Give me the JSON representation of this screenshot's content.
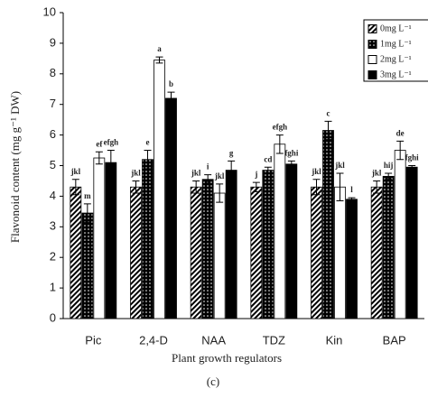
{
  "chart_data": {
    "type": "bar",
    "ylabel": "Flavonoid content (mg g⁻¹ DW)",
    "xlabel": "Plant growth regulators",
    "caption": "(c)",
    "categories": [
      "Pic",
      "2,4-D",
      "NAA",
      "TDZ",
      "Kin",
      "BAP"
    ],
    "ylim": [
      0,
      10
    ],
    "yticks": [
      0,
      1,
      2,
      3,
      4,
      5,
      6,
      7,
      8,
      9,
      10
    ],
    "series": [
      {
        "name": "0mg L⁻¹",
        "color": "#000000",
        "pattern": "hatch",
        "values": [
          4.3,
          4.3,
          4.3,
          4.3,
          4.3,
          4.3
        ],
        "errors": [
          0.25,
          0.2,
          0.2,
          0.15,
          0.25,
          0.2
        ],
        "letters": [
          "jkl",
          "jkl",
          "jkl",
          "j",
          "jkl",
          "jkl"
        ]
      },
      {
        "name": "1mg L⁻¹",
        "color": "#000000",
        "pattern": "dots",
        "values": [
          3.45,
          5.2,
          4.55,
          4.85,
          6.15,
          4.65
        ],
        "errors": [
          0.3,
          0.3,
          0.15,
          0.1,
          0.3,
          0.1
        ],
        "letters": [
          "m",
          "e",
          "i",
          "cd",
          "c",
          "hij"
        ]
      },
      {
        "name": "2mg L⁻¹",
        "color": "#ffffff",
        "pattern": "none",
        "values": [
          5.25,
          8.45,
          4.1,
          5.7,
          4.3,
          5.5
        ],
        "errors": [
          0.2,
          0.1,
          0.3,
          0.3,
          0.45,
          0.3
        ],
        "letters": [
          "ef",
          "a",
          "jkl",
          "efgh",
          "jkl",
          "de"
        ]
      },
      {
        "name": "3mg L⁻¹",
        "color": "#000000",
        "pattern": "none",
        "values": [
          5.1,
          7.2,
          4.85,
          5.05,
          3.9,
          4.95
        ],
        "errors": [
          0.4,
          0.2,
          0.3,
          0.1,
          0.05,
          0.05
        ],
        "letters": [
          "efgh",
          "b",
          "g",
          "fghi",
          "l",
          "fghi"
        ]
      }
    ]
  }
}
